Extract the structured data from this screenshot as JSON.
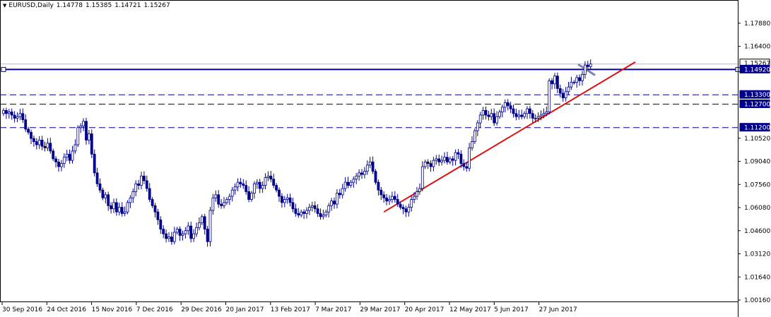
{
  "header": {
    "symbol_timeframe": "EURUSD,Daily",
    "open": "1.14778",
    "high": "1.15385",
    "low": "1.14721",
    "close": "1.15267"
  },
  "chart_data": {
    "type": "candlestick",
    "symbol": "EURUSD",
    "timeframe": "Daily",
    "y_ticks": [
      "1.17880",
      "1.16400",
      "1.10520",
      "1.09040",
      "1.07560",
      "1.06080",
      "1.04600",
      "1.03120",
      "1.01640",
      "1.00160"
    ],
    "ylim": [
      1.0016,
      1.1936
    ],
    "x_ticks": [
      "30 Sep 2016",
      "24 Oct 2016",
      "15 Nov 2016",
      "7 Dec 2016",
      "29 Dec 2016",
      "20 Jan 2017",
      "13 Feb 2017",
      "7 Mar 2017",
      "29 Mar 2017",
      "20 Apr 2017",
      "12 May 2017",
      "5 Jun 2017",
      "27 Jun 2017"
    ],
    "price_levels": [
      {
        "label": "1.15267",
        "value": 1.15267,
        "kind": "bid",
        "color": "#ffffff"
      },
      {
        "label": "1.14920",
        "value": 1.1492,
        "kind": "solid",
        "color": "#00008b"
      },
      {
        "label": "1.13300",
        "value": 1.133,
        "kind": "dashed",
        "color": "#00008b"
      },
      {
        "label": "1.12700",
        "value": 1.127,
        "kind": "dashed",
        "color": "#00008b"
      },
      {
        "label": "1.11200",
        "value": 1.112,
        "kind": "dashed",
        "color": "#00008b"
      }
    ],
    "trendline": {
      "from": {
        "date": "30 Mar 2017",
        "price": 1.058
      },
      "to": {
        "date": "10 Jul 2017",
        "price": 1.148
      },
      "color": "#dd1111"
    },
    "closes": [
      1.123,
      1.121,
      1.122,
      1.12,
      1.118,
      1.119,
      1.121,
      1.117,
      1.111,
      1.109,
      1.105,
      1.103,
      1.101,
      1.104,
      1.1,
      1.099,
      1.102,
      1.097,
      1.092,
      1.09,
      1.087,
      1.089,
      1.093,
      1.095,
      1.091,
      1.097,
      1.101,
      1.112,
      1.113,
      1.116,
      1.104,
      1.108,
      1.095,
      1.083,
      1.076,
      1.072,
      1.067,
      1.069,
      1.062,
      1.06,
      1.064,
      1.058,
      1.061,
      1.057,
      1.058,
      1.064,
      1.067,
      1.071,
      1.076,
      1.075,
      1.081,
      1.078,
      1.073,
      1.066,
      1.062,
      1.058,
      1.053,
      1.047,
      1.044,
      1.041,
      1.042,
      1.039,
      1.045,
      1.047,
      1.043,
      1.044,
      1.046,
      1.049,
      1.041,
      1.044,
      1.048,
      1.051,
      1.055,
      1.047,
      1.039,
      1.059,
      1.067,
      1.069,
      1.063,
      1.062,
      1.064,
      1.066,
      1.068,
      1.072,
      1.074,
      1.077,
      1.076,
      1.075,
      1.071,
      1.066,
      1.07,
      1.076,
      1.077,
      1.073,
      1.075,
      1.08,
      1.081,
      1.079,
      1.075,
      1.072,
      1.068,
      1.064,
      1.066,
      1.067,
      1.064,
      1.06,
      1.057,
      1.056,
      1.058,
      1.057,
      1.059,
      1.061,
      1.062,
      1.06,
      1.057,
      1.055,
      1.056,
      1.058,
      1.062,
      1.065,
      1.063,
      1.07,
      1.069,
      1.073,
      1.077,
      1.075,
      1.077,
      1.079,
      1.081,
      1.083,
      1.082,
      1.084,
      1.088,
      1.09,
      1.084,
      1.077,
      1.072,
      1.069,
      1.067,
      1.065,
      1.066,
      1.068,
      1.066,
      1.063,
      1.061,
      1.06,
      1.058,
      1.061,
      1.066,
      1.068,
      1.071,
      1.073,
      1.087,
      1.09,
      1.089,
      1.087,
      1.091,
      1.092,
      1.09,
      1.091,
      1.093,
      1.09,
      1.092,
      1.091,
      1.096,
      1.095,
      1.089,
      1.087,
      1.086,
      1.099,
      1.103,
      1.11,
      1.115,
      1.12,
      1.123,
      1.12,
      1.119,
      1.121,
      1.115,
      1.119,
      1.122,
      1.125,
      1.128,
      1.126,
      1.124,
      1.121,
      1.119,
      1.12,
      1.119,
      1.121,
      1.124,
      1.121,
      1.118,
      1.118,
      1.119,
      1.12,
      1.121,
      1.122,
      1.142,
      1.14,
      1.145,
      1.137,
      1.134,
      1.131,
      1.135,
      1.138,
      1.141,
      1.141,
      1.144,
      1.142,
      1.146,
      1.152,
      1.151,
      1.1527
    ]
  }
}
